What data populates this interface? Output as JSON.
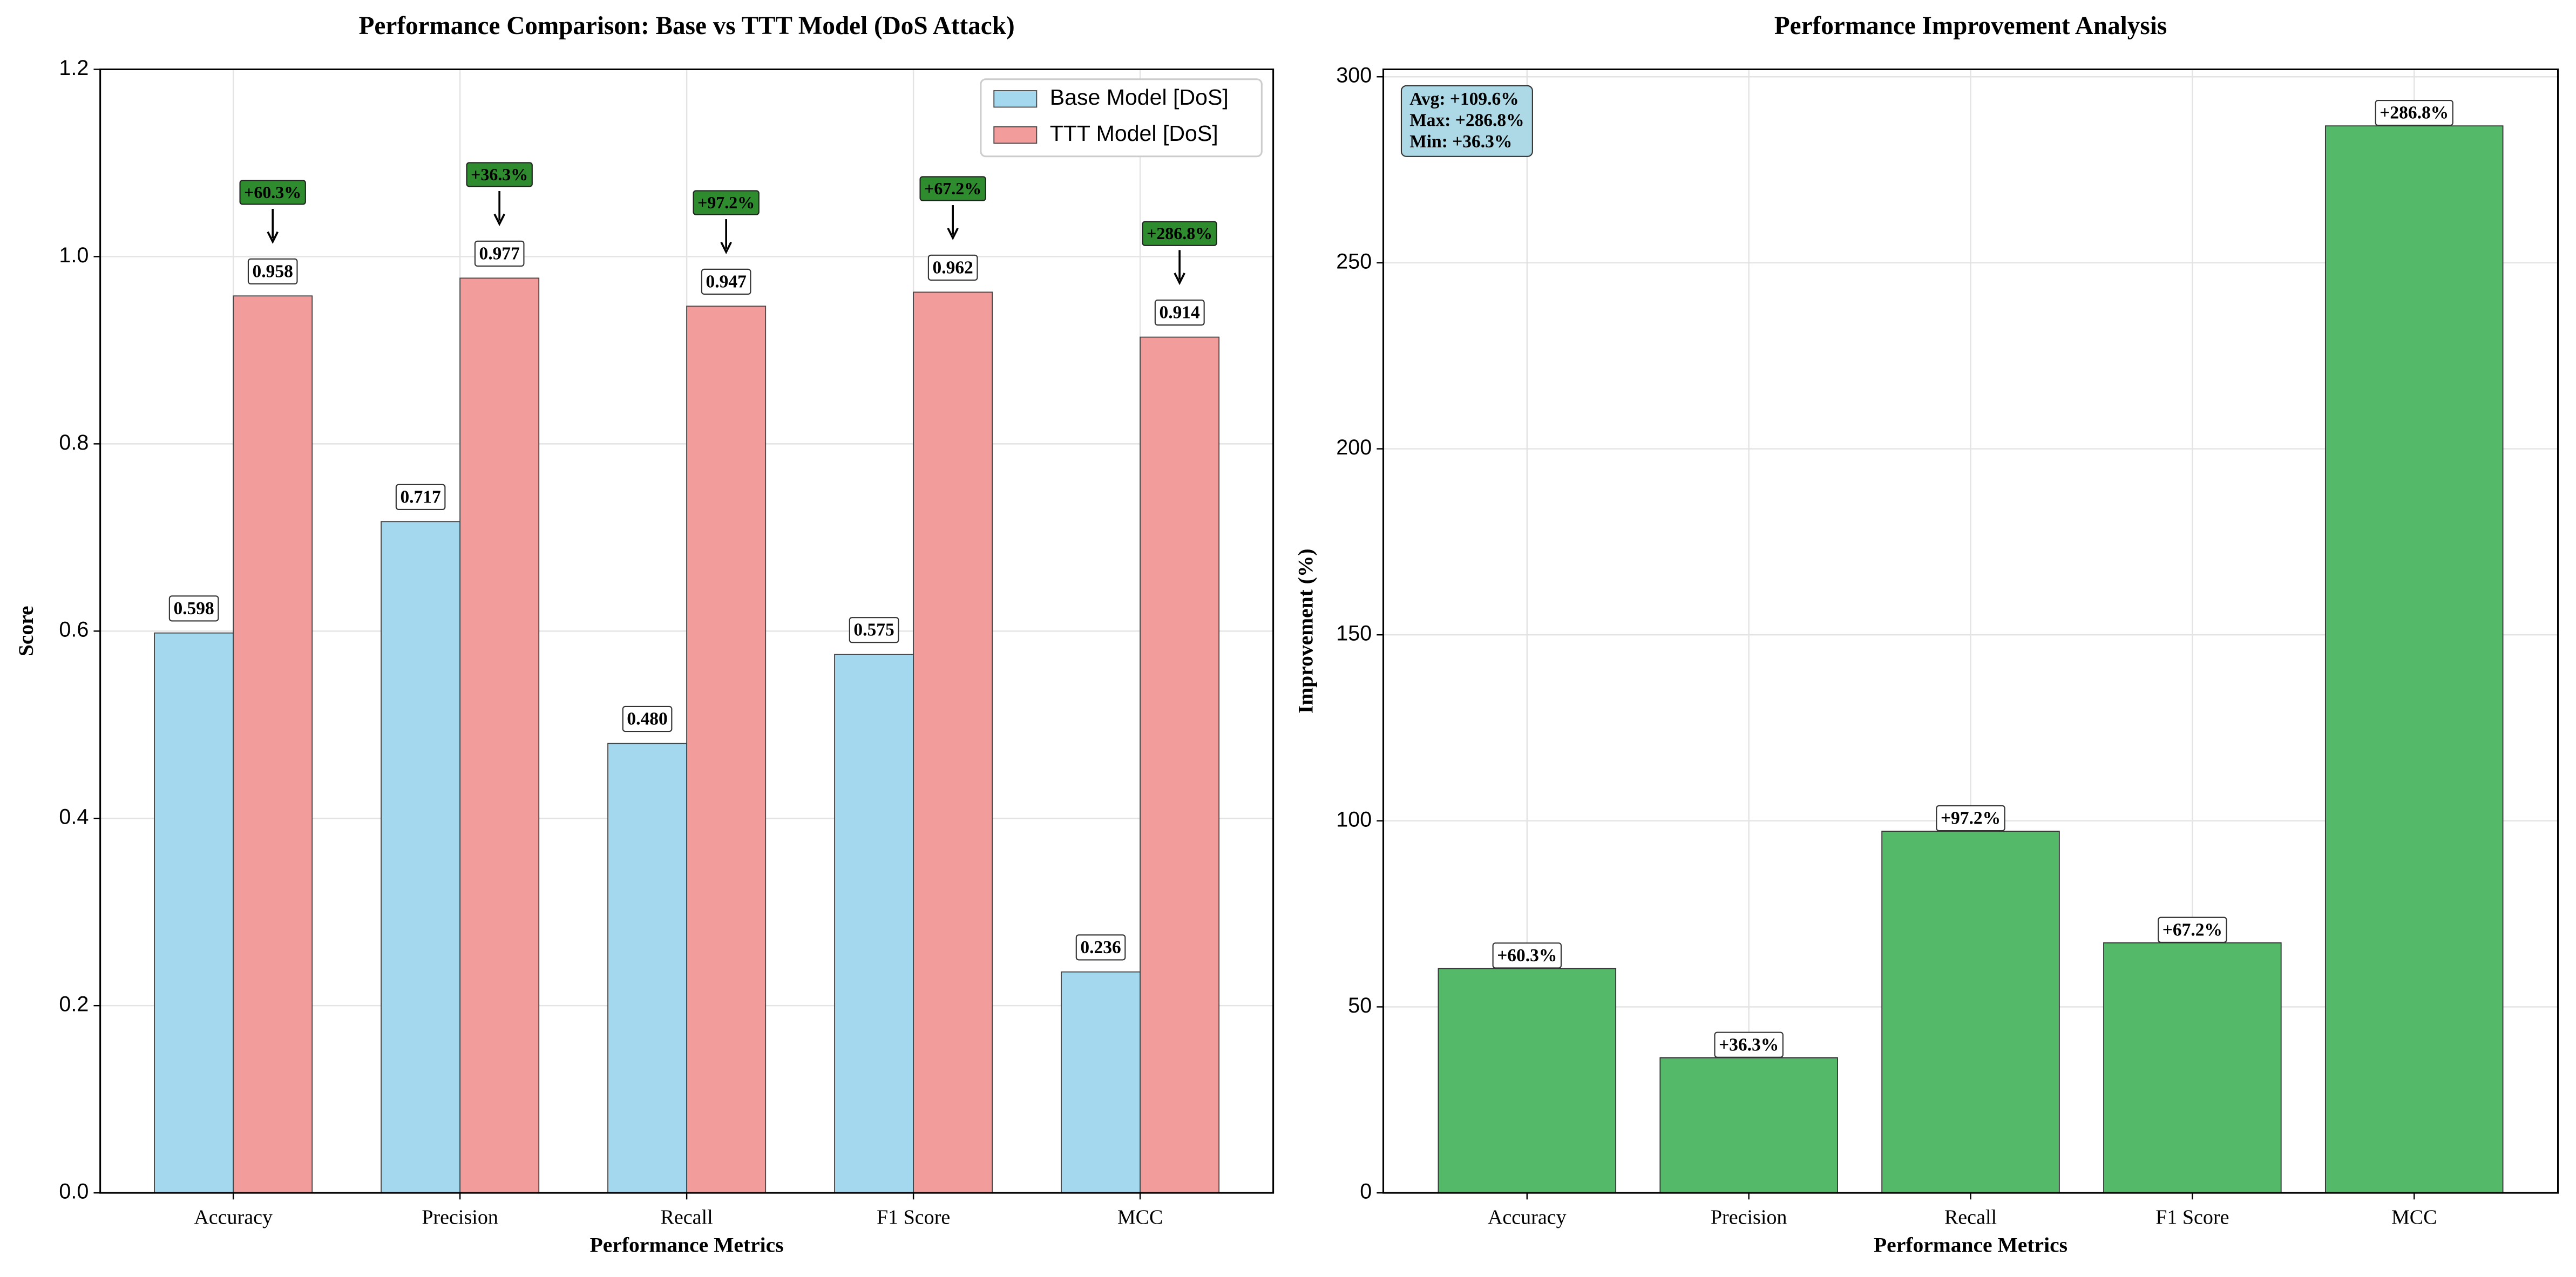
{
  "chart_data": [
    {
      "type": "bar",
      "title": "Performance Comparison: Base vs TTT Model (DoS Attack)",
      "xlabel": "Performance Metrics",
      "ylabel": "Score",
      "categories": [
        "Accuracy",
        "Precision",
        "Recall",
        "F1 Score",
        "MCC"
      ],
      "series": [
        {
          "name": "Base Model [DoS]",
          "color": "#a3d8ee",
          "values": [
            0.598,
            0.717,
            0.48,
            0.575,
            0.236
          ],
          "value_labels": [
            "0.598",
            "0.717",
            "0.480",
            "0.575",
            "0.236"
          ]
        },
        {
          "name": "TTT Model [DoS]",
          "color": "#f29c9c",
          "values": [
            0.958,
            0.977,
            0.947,
            0.962,
            0.914
          ],
          "value_labels": [
            "0.958",
            "0.977",
            "0.947",
            "0.962",
            "0.914"
          ]
        }
      ],
      "improvements": [
        "+60.3%",
        "+36.3%",
        "+97.2%",
        "+67.2%",
        "+286.8%"
      ],
      "improvement_color": "#2e8b2e",
      "ylim": [
        0,
        1.2
      ],
      "yticks": [
        {
          "value": 0,
          "label": "0.0"
        },
        0.2,
        0.4,
        0.6,
        0.8,
        {
          "value": 1,
          "label": "1.0"
        },
        1.2
      ],
      "grid": true,
      "legend": "upper right"
    },
    {
      "type": "bar",
      "title": "Performance Improvement Analysis",
      "xlabel": "Performance Metrics",
      "ylabel": "Improvement (%)",
      "categories": [
        "Accuracy",
        "Precision",
        "Recall",
        "F1 Score",
        "MCC"
      ],
      "values": [
        60.3,
        36.3,
        97.2,
        67.2,
        286.8
      ],
      "value_labels": [
        "+60.3%",
        "+36.3%",
        "+97.2%",
        "+67.2%",
        "+286.8%"
      ],
      "color": "#55b96a",
      "stats": [
        "Avg: +109.6%",
        "Max: +286.8%",
        "Min: +36.3%"
      ],
      "stats_color": "#add8e6",
      "ylim": [
        0,
        302
      ],
      "yticks": [
        0,
        50,
        100,
        150,
        200,
        250,
        300
      ],
      "grid": true
    }
  ]
}
